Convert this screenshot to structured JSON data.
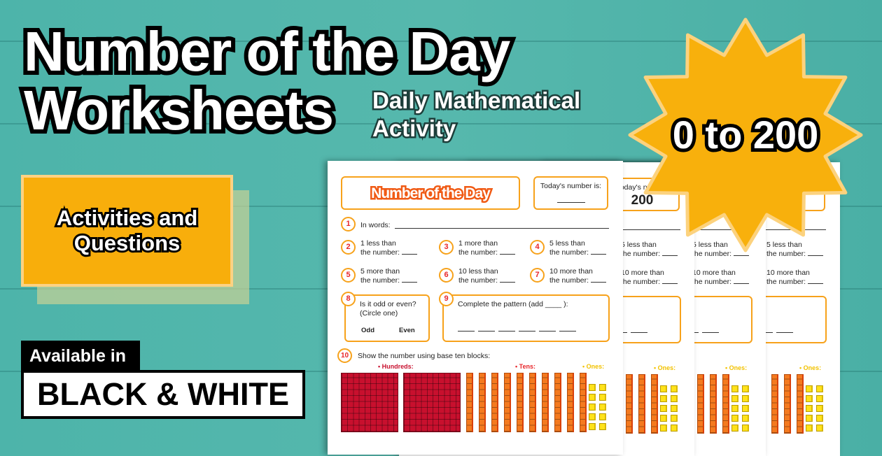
{
  "banner": {
    "title_line1": "Number of the Day",
    "title_line2": "Worksheets",
    "subtitle": "Daily Mathematical Activity",
    "activities_label": "Activities and Questions",
    "available_label": "Available in",
    "bw_label": "BLACK & WHITE",
    "star_label": "0 to 200",
    "colors": {
      "background": "#4cb2a8",
      "accent": "#f8ae0b",
      "worksheet_border": "#f7a21b"
    }
  },
  "worksheet": {
    "title": "Number of the Day",
    "q1": {
      "num": "1",
      "text": "In words:"
    },
    "q2": {
      "num": "2",
      "line1": "1 less than",
      "line2": "the number:"
    },
    "q3": {
      "num": "3",
      "line1": "1 more than",
      "line2": "the number:"
    },
    "q4": {
      "num": "4",
      "line1": "5 less than",
      "line2": "the number:"
    },
    "q5": {
      "num": "5",
      "line1": "5 more than",
      "line2": "the number:"
    },
    "q6": {
      "num": "6",
      "line1": "10 less than",
      "line2": "the number:"
    },
    "q7": {
      "num": "7",
      "line1": "10 more than",
      "line2": "the number:"
    },
    "q8": {
      "num": "8",
      "line1": "Is it odd or even?",
      "line2": "(Circle one)",
      "odd": "Odd",
      "even": "Even"
    },
    "q9": {
      "num": "9",
      "text": "Complete the pattern (add ____ ):"
    },
    "q10": {
      "num": "10",
      "text": "Show the number using base ten blocks:",
      "hundreds": "Hundreds:",
      "tens": "Tens:",
      "ones": "Ones:"
    },
    "base_ten_blocks": {
      "hundreds": 2,
      "tens": 10,
      "ones": 10
    }
  },
  "sheets": [
    {
      "today_label": "Today's number is:",
      "today_value": ""
    },
    {
      "today_label": "Today's number",
      "today_value": "200"
    },
    {
      "today_label": "",
      "today_value": ""
    },
    {
      "today_label": "",
      "today_value": ""
    }
  ]
}
